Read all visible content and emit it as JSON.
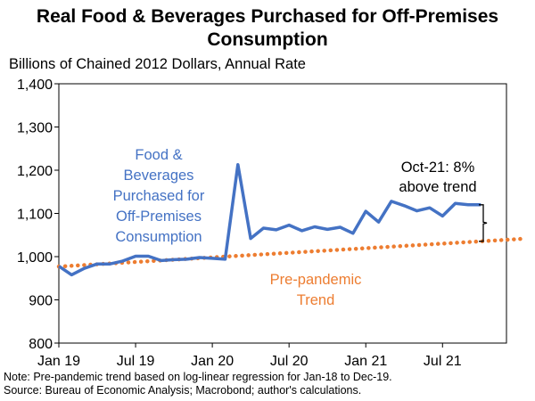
{
  "title_lines": [
    "Real Food & Beverages Purchased for Off-Premises",
    "Consumption"
  ],
  "ylabel": "Billions of Chained 2012 Dollars, Annual Rate",
  "notes": [
    "Note: Pre-pandemic trend based on log-linear regression for Jan-18 to Dec-19.",
    "Source: Bureau of Economic Analysis; Macrobond; author's calculations."
  ],
  "colors": {
    "series": "#4472C4",
    "trend": "#ED7D31",
    "axis": "#000000"
  },
  "chart_data": {
    "type": "line",
    "title": "Real Food & Beverages Purchased for Off-Premises Consumption",
    "ylabel": "Billions of Chained 2012 Dollars, Annual Rate",
    "ylim": [
      800,
      1400
    ],
    "yticks": [
      800,
      900,
      1000,
      1100,
      1200,
      1300,
      1400
    ],
    "ytick_labels": [
      "800",
      "900",
      "1,000",
      "1,100",
      "1,200",
      "1,300",
      "1,400"
    ],
    "xticks": [
      "Jan 19",
      "Jul 19",
      "Jan 20",
      "Jul 20",
      "Jan 21",
      "Jul 21"
    ],
    "x_range": [
      "Jan 19",
      "Dec 21"
    ],
    "grid": false,
    "series": [
      {
        "name": "Food & Beverages Purchased for Off-Premises Consumption",
        "label_lines": [
          "Food &",
          "Beverages",
          "Purchased for",
          "Off-Premises",
          "Consumption"
        ],
        "style": "solid",
        "x": [
          "Jan 19",
          "Feb 19",
          "Mar 19",
          "Apr 19",
          "May 19",
          "Jun 19",
          "Jul 19",
          "Aug 19",
          "Sep 19",
          "Oct 19",
          "Nov 19",
          "Dec 19",
          "Jan 20",
          "Feb 20",
          "Mar 20",
          "Apr 20",
          "May 20",
          "Jun 20",
          "Jul 20",
          "Aug 20",
          "Sep 20",
          "Oct 20",
          "Nov 20",
          "Dec 20",
          "Jan 21",
          "Feb 21",
          "Mar 21",
          "Apr 21",
          "May 21",
          "Jun 21",
          "Jul 21",
          "Aug 21",
          "Sep 21",
          "Oct 21"
        ],
        "values": [
          978,
          958,
          973,
          983,
          983,
          990,
          1001,
          1001,
          991,
          993,
          994,
          998,
          996,
          994,
          1213,
          1042,
          1066,
          1062,
          1073,
          1060,
          1069,
          1063,
          1068,
          1054,
          1105,
          1080,
          1128,
          1118,
          1106,
          1113,
          1094,
          1123,
          1120,
          1120
        ]
      },
      {
        "name": "Pre-pandemic Trend",
        "label_lines": [
          "Pre-pandemic",
          "Trend"
        ],
        "style": "dotted",
        "x": [
          "Jan 19",
          "Dec 21"
        ],
        "values": [
          977,
          1039
        ]
      }
    ],
    "annotations": [
      {
        "text_lines": [
          "Oct-21: 8%",
          "above trend"
        ],
        "at": "Oct 21"
      }
    ]
  }
}
